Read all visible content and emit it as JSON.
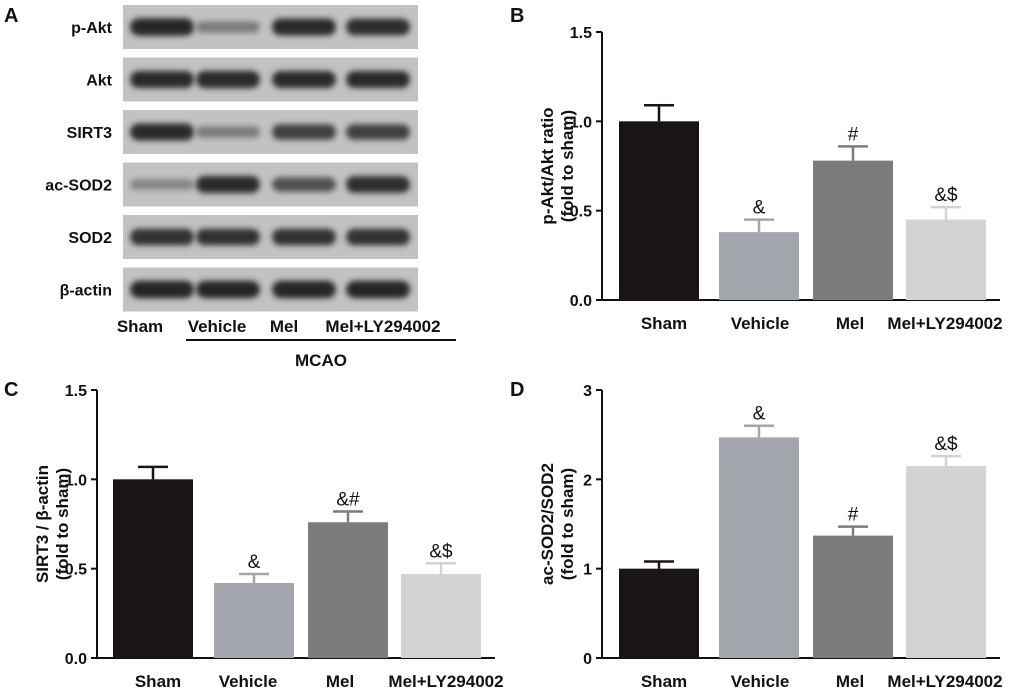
{
  "panel_letters": [
    "A",
    "B",
    "C",
    "D"
  ],
  "western_blot": {
    "bands": [
      "p-Akt",
      "Akt",
      "SIRT3",
      "ac-SOD2",
      "SOD2",
      "β-actin"
    ],
    "lanes": [
      "Sham",
      "Vehicle",
      "Mel",
      "Mel+LY294002"
    ],
    "group_label": "MCAO",
    "band_intensity": [
      [
        0.95,
        0.45,
        0.92,
        0.9
      ],
      [
        0.92,
        0.93,
        0.92,
        0.92
      ],
      [
        0.92,
        0.45,
        0.8,
        0.8
      ],
      [
        0.4,
        0.92,
        0.7,
        0.9
      ],
      [
        0.88,
        0.88,
        0.88,
        0.88
      ],
      [
        0.95,
        0.95,
        0.95,
        0.95
      ]
    ]
  },
  "colors": [
    "#1a1414",
    "#a3a6ad",
    "#7c7c7c",
    "#d3d3d3"
  ],
  "chart_data": [
    {
      "panel": "B",
      "type": "bar",
      "categories": [
        "Sham",
        "Vehicle",
        "Mel",
        "Mel+LY294002"
      ],
      "values": [
        1.0,
        0.38,
        0.78,
        0.45
      ],
      "errors": [
        0.09,
        0.07,
        0.08,
        0.07
      ],
      "annotations": [
        "",
        "&",
        "#",
        "&$"
      ],
      "ylabel": [
        "p-Akt/Akt ratio",
        "(fold to sham)"
      ],
      "ylim": [
        0,
        1.5
      ],
      "yticks": [
        "0.0",
        "0.5",
        "1.0",
        "1.5"
      ]
    },
    {
      "panel": "C",
      "type": "bar",
      "categories": [
        "Sham",
        "Vehicle",
        "Mel",
        "Mel+LY294002"
      ],
      "values": [
        1.0,
        0.42,
        0.76,
        0.47
      ],
      "errors": [
        0.07,
        0.05,
        0.06,
        0.06
      ],
      "annotations": [
        "",
        "&",
        "&#",
        "&$"
      ],
      "ylabel": [
        "SIRT3 / β-actin",
        "(fold to sham)"
      ],
      "ylim": [
        0,
        1.5
      ],
      "yticks": [
        "0.0",
        "0.5",
        "1.0",
        "1.5"
      ]
    },
    {
      "panel": "D",
      "type": "bar",
      "categories": [
        "Sham",
        "Vehicle",
        "Mel",
        "Mel+LY294002"
      ],
      "values": [
        1.0,
        2.47,
        1.37,
        2.15
      ],
      "errors": [
        0.08,
        0.13,
        0.1,
        0.11
      ],
      "annotations": [
        "",
        "&",
        "#",
        "&$"
      ],
      "ylabel": [
        "ac-SOD2/SOD2",
        "(fold to sham)"
      ],
      "ylim": [
        0,
        3
      ],
      "yticks": [
        "0",
        "1",
        "2",
        "3"
      ]
    }
  ]
}
